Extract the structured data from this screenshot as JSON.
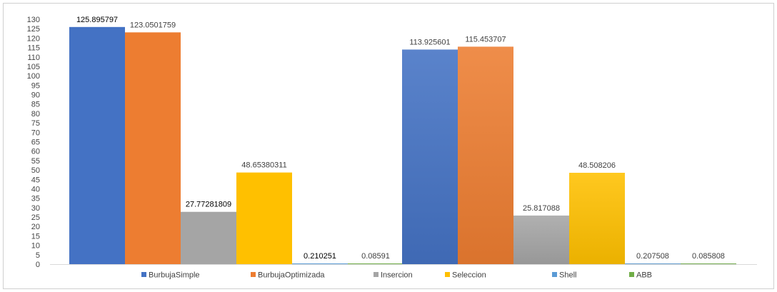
{
  "chart_data": {
    "type": "bar",
    "title": "",
    "xlabel": "",
    "ylabel": "",
    "ylim": [
      0,
      130
    ],
    "ytick_step": 5,
    "yticks": [
      "0",
      "5",
      "10",
      "15",
      "20",
      "25",
      "30",
      "35",
      "40",
      "45",
      "50",
      "55",
      "60",
      "65",
      "70",
      "75",
      "80",
      "85",
      "90",
      "95",
      "100",
      "105",
      "110",
      "115",
      "120",
      "125",
      "130"
    ],
    "categories": [
      "",
      ""
    ],
    "grid": false,
    "legend_position": "bottom",
    "series": [
      {
        "name": "BurbujaSimple",
        "color": "#4472C4",
        "values": [
          125.895797,
          113.925601
        ],
        "labels": [
          "125.895797",
          "113.925601"
        ],
        "label_dark": [
          true,
          false
        ]
      },
      {
        "name": "BurbujaOptimizada",
        "color": "#ED7D31",
        "values": [
          123.0501759,
          115.453707
        ],
        "labels": [
          "123.0501759",
          "115.453707"
        ],
        "label_dark": [
          false,
          false
        ]
      },
      {
        "name": "Insercion",
        "color": "#A5A5A5",
        "values": [
          27.77281809,
          25.817088
        ],
        "labels": [
          "27.77281809",
          "25.817088"
        ],
        "label_dark": [
          true,
          false
        ]
      },
      {
        "name": "Seleccion",
        "color": "#FFC000",
        "values": [
          48.65380311,
          48.508206
        ],
        "labels": [
          "48.65380311",
          "48.508206"
        ],
        "label_dark": [
          false,
          false
        ]
      },
      {
        "name": "Shell",
        "color": "#5B9BD5",
        "values": [
          0.210251,
          0.207508
        ],
        "labels": [
          "0.210251",
          "0.207508"
        ],
        "label_dark": [
          true,
          false
        ]
      },
      {
        "name": "ABB",
        "color": "#70AD47",
        "values": [
          0.08591,
          0.085808
        ],
        "labels": [
          "0.08591",
          "0.085808"
        ],
        "label_dark": [
          false,
          false
        ]
      }
    ]
  }
}
